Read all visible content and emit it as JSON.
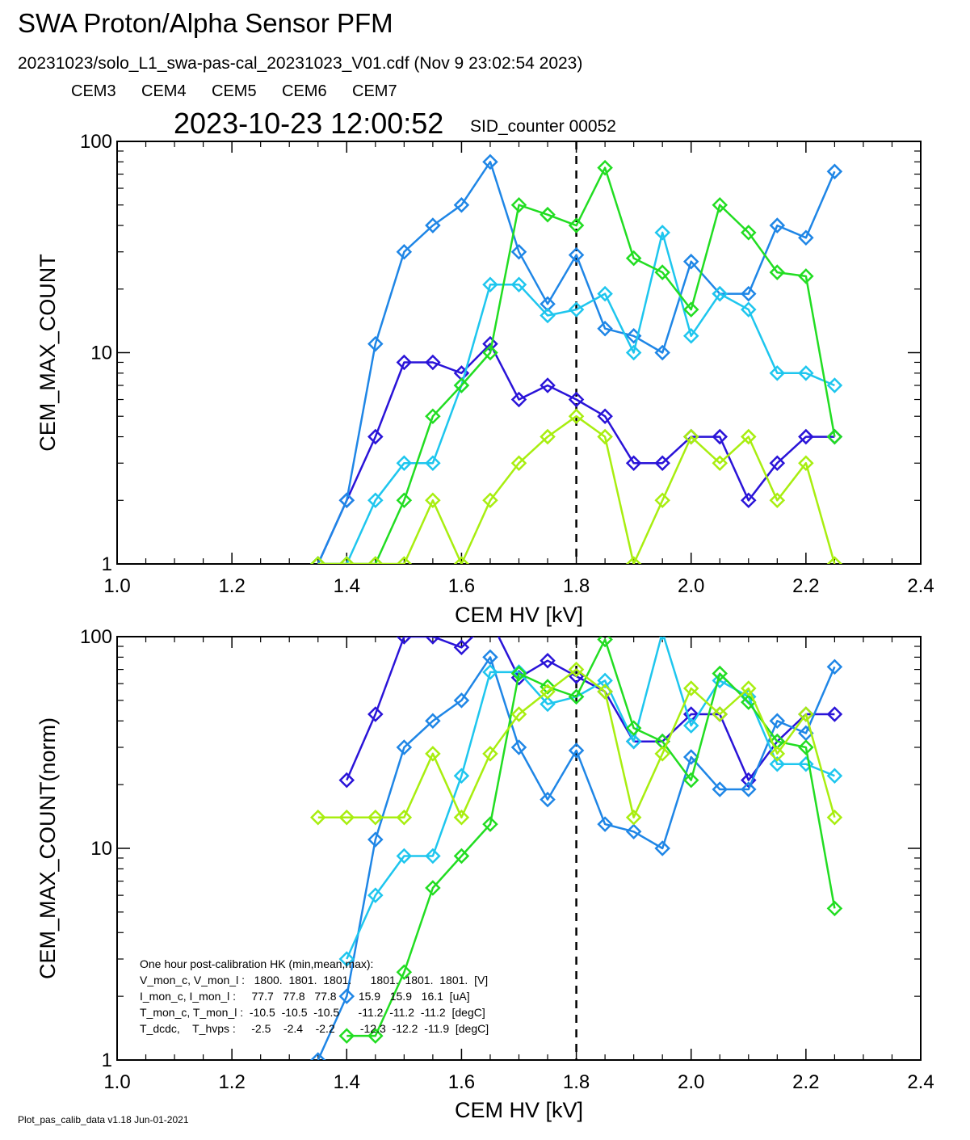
{
  "title": "SWA Proton/Alpha Sensor PFM",
  "file_line": "20231023/solo_L1_swa-pas-cal_20231023_V01.cdf  (Nov  9 23:02:54 2023)",
  "legend": [
    {
      "name": "CEM3",
      "color": "#2a14d8"
    },
    {
      "name": "CEM4",
      "color": "#1f86e6"
    },
    {
      "name": "CEM5",
      "color": "#1ec6ee"
    },
    {
      "name": "CEM6",
      "color": "#22dd22"
    },
    {
      "name": "CEM7",
      "color": "#a8ee10"
    }
  ],
  "timestamp": "2023-10-23 12:00:52",
  "sid_counter": "SID_counter 00052",
  "footer": "Plot_pas_calib_data v1.18 Jun-01-2021",
  "hk": {
    "heading": "One hour post-calibration HK (min,mean,max):",
    "rows": [
      "V_mon_c, V_mon_l :   1800.  1801.  1801.      1801.  1801.  1801.  [V]",
      "I_mon_c, I_mon_l :     77.7   77.8   77.8       15.9   15.9   16.1  [uA]",
      "T_mon_c, T_mon_l :  -10.5  -10.5  -10.5      -11.2  -11.2  -11.2  [degC]",
      "T_dcdc,    T_hvps :     -2.5    -2.4    -2.2        -12.3  -12.2  -11.9  [degC]"
    ]
  },
  "chart_data": [
    {
      "type": "line",
      "xlabel": "CEM HV [kV]",
      "ylabel": "CEM_MAX_COUNT",
      "xlim": [
        1.0,
        2.4
      ],
      "ylim": [
        1,
        100
      ],
      "yscale": "log",
      "xticks": [
        "1.0",
        "1.2",
        "1.4",
        "1.6",
        "1.8",
        "2.0",
        "2.2",
        "2.4"
      ],
      "yticks": [
        "1",
        "10",
        "100"
      ],
      "marker": "diamond",
      "vline_x": 1.8,
      "x": [
        1.35,
        1.4,
        1.45,
        1.5,
        1.55,
        1.6,
        1.65,
        1.7,
        1.75,
        1.8,
        1.85,
        1.9,
        1.95,
        2.0,
        2.05,
        2.1,
        2.15,
        2.2,
        2.25
      ],
      "series": [
        {
          "name": "CEM3",
          "values": [
            1,
            2,
            4,
            9,
            9,
            8,
            11,
            6,
            7,
            6,
            5,
            3,
            3,
            4,
            4,
            2,
            3,
            4,
            4
          ]
        },
        {
          "name": "CEM4",
          "values": [
            1,
            2,
            11,
            30,
            40,
            50,
            80,
            30,
            17,
            29,
            13,
            12,
            10,
            27,
            19,
            19,
            40,
            35,
            72
          ]
        },
        {
          "name": "CEM5",
          "values": [
            1,
            1,
            2,
            3,
            3,
            7,
            21,
            21,
            15,
            16,
            19,
            10,
            37,
            12,
            19,
            16,
            8,
            8,
            7
          ]
        },
        {
          "name": "CEM6",
          "values": [
            1,
            1,
            1,
            2,
            5,
            7,
            10,
            50,
            45,
            40,
            75,
            28,
            24,
            16,
            50,
            37,
            24,
            23,
            4
          ]
        },
        {
          "name": "CEM7",
          "values": [
            1,
            1,
            1,
            1,
            2,
            1,
            2,
            3,
            4,
            5,
            4,
            1,
            2,
            4,
            3,
            4,
            2,
            3,
            1
          ]
        }
      ]
    },
    {
      "type": "line",
      "xlabel": "CEM HV [kV]",
      "ylabel": "CEM_MAX_COUNT(norm)",
      "xlim": [
        1.0,
        2.4
      ],
      "ylim": [
        1,
        100
      ],
      "yscale": "log",
      "xticks": [
        "1.0",
        "1.2",
        "1.4",
        "1.6",
        "1.8",
        "2.0",
        "2.2",
        "2.4"
      ],
      "yticks": [
        "1",
        "10",
        "100"
      ],
      "marker": "diamond",
      "vline_x": 1.8,
      "x": [
        1.35,
        1.4,
        1.45,
        1.5,
        1.55,
        1.6,
        1.65,
        1.7,
        1.75,
        1.8,
        1.85,
        1.9,
        1.95,
        2.0,
        2.05,
        2.1,
        2.15,
        2.2,
        2.25
      ],
      "series": [
        {
          "name": "CEM3",
          "values": [
            null,
            21,
            43,
            100,
            100,
            89,
            120,
            64,
            77,
            65,
            55,
            32,
            32,
            43,
            43,
            21,
            32,
            43,
            43
          ]
        },
        {
          "name": "CEM4",
          "values": [
            1,
            2,
            11,
            30,
            40,
            50,
            80,
            30,
            17,
            29,
            13,
            12,
            10,
            27,
            19,
            19,
            40,
            35,
            72
          ]
        },
        {
          "name": "CEM5",
          "values": [
            null,
            3,
            6,
            9.2,
            9.2,
            22,
            68,
            68,
            48,
            52,
            62,
            32,
            105,
            38,
            62,
            52,
            25,
            25,
            22
          ]
        },
        {
          "name": "CEM6",
          "values": [
            null,
            1.3,
            1.3,
            2.6,
            6.5,
            9.2,
            13,
            67,
            58,
            52,
            97,
            37,
            32,
            21,
            67,
            49,
            32,
            30,
            5.2
          ]
        },
        {
          "name": "CEM7",
          "values": [
            14,
            14,
            14,
            14,
            28,
            14,
            28,
            43,
            55,
            70,
            55,
            14,
            28,
            57,
            43,
            57,
            28,
            43,
            14
          ]
        }
      ]
    }
  ]
}
